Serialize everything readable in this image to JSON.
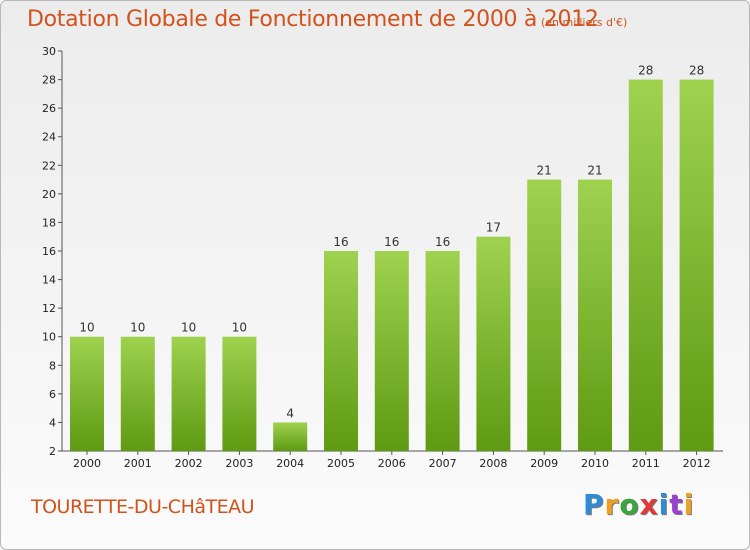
{
  "header": {
    "title": "Dotation Globale de Fonctionnement de 2000 à 2012",
    "unit": "(en milliers d'€)"
  },
  "footer": {
    "place": "TOURETTE-DU-CHâTEAU",
    "brand": "Proxiti",
    "brand_colors": [
      "#2e8bd8",
      "#f0a020",
      "#3aa53a",
      "#e23838",
      "#2e8bd8",
      "#9b3fd0",
      "#f0a020"
    ]
  },
  "colors": {
    "bar_top": "#9fd24f",
    "bar_bottom": "#5e9a12",
    "accent": "#d2521c"
  },
  "chart_data": {
    "type": "bar",
    "title": "Dotation Globale de Fonctionnement de 2000 à 2012",
    "subtitle": "(en milliers d'€)",
    "categories": [
      "2000",
      "2001",
      "2002",
      "2003",
      "2004",
      "2005",
      "2006",
      "2007",
      "2008",
      "2009",
      "2010",
      "2011",
      "2012"
    ],
    "values": [
      10,
      10,
      10,
      10,
      4,
      16,
      16,
      16,
      17,
      21,
      21,
      28,
      28
    ],
    "ylim": [
      2,
      30
    ],
    "yticks": [
      2,
      4,
      6,
      8,
      10,
      12,
      14,
      16,
      18,
      20,
      22,
      24,
      26,
      28,
      30
    ],
    "grid": false,
    "legend": "none"
  }
}
